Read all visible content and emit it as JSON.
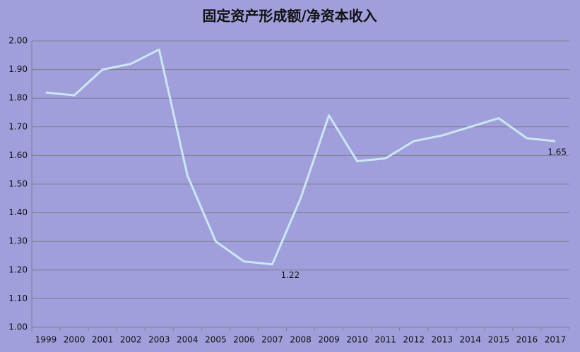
{
  "chart_data": {
    "type": "line",
    "title": "固定资产形成额/净资本收入",
    "categories": [
      "1999",
      "2000",
      "2001",
      "2002",
      "2003",
      "2004",
      "2005",
      "2006",
      "2007",
      "2008",
      "2009",
      "2010",
      "2011",
      "2012",
      "2013",
      "2014",
      "2015",
      "2016",
      "2017"
    ],
    "values": [
      1.82,
      1.81,
      1.9,
      1.92,
      1.97,
      1.53,
      1.3,
      1.23,
      1.22,
      1.45,
      1.74,
      1.58,
      1.59,
      1.65,
      1.67,
      1.7,
      1.73,
      1.66,
      1.65
    ],
    "value_labels": [
      null,
      null,
      null,
      null,
      null,
      null,
      null,
      null,
      "1.22",
      null,
      null,
      null,
      null,
      null,
      null,
      null,
      null,
      null,
      "1.65"
    ],
    "color": "#c9e8f2",
    "ylim": [
      1.0,
      2.0
    ],
    "yticks": [
      {
        "value": 1.0,
        "label": "1.00"
      },
      {
        "value": 1.1,
        "label": "1.10"
      },
      {
        "value": 1.2,
        "label": "1.20"
      },
      {
        "value": 1.3,
        "label": "1.30"
      },
      {
        "value": 1.4,
        "label": "1.40"
      },
      {
        "value": 1.5,
        "label": "1.50"
      },
      {
        "value": 1.6,
        "label": "1.60"
      },
      {
        "value": 1.7,
        "label": "1.70"
      },
      {
        "value": 1.8,
        "label": "1.80"
      },
      {
        "value": 1.9,
        "label": "1.90"
      },
      {
        "value": 2.0,
        "label": "2.00"
      }
    ],
    "grid": true
  }
}
